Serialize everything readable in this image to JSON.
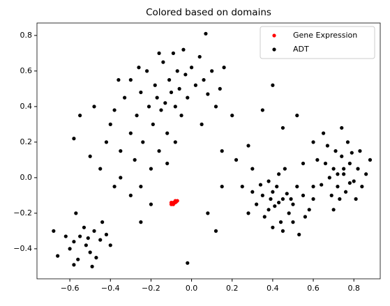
{
  "chart_data": {
    "type": "scatter",
    "title": "Colored based on domains",
    "xlim": [
      -0.762,
      0.93
    ],
    "ylim": [
      -0.569,
      0.87
    ],
    "xticks": [
      {
        "value": -0.6,
        "label": "−0.6"
      },
      {
        "value": -0.4,
        "label": "−0.4"
      },
      {
        "value": -0.2,
        "label": "−0.2"
      },
      {
        "value": 0,
        "label": "0.0"
      },
      0.2,
      0.4,
      0.6,
      0.8
    ],
    "yticks": [
      {
        "value": -0.4,
        "label": "−0.4"
      },
      {
        "value": -0.2,
        "label": "−0.2"
      },
      {
        "value": 0,
        "label": "0.0"
      },
      0.2,
      0.4,
      0.6,
      0.8
    ],
    "legend": "upper right",
    "series": [
      {
        "name": "ADT",
        "color": "#000000",
        "x": [
          -0.55,
          -0.52,
          -0.48,
          -0.58,
          -0.5,
          -0.45,
          -0.53,
          -0.6,
          -0.47,
          -0.42,
          -0.56,
          -0.62,
          -0.49,
          -0.4,
          -0.57,
          -0.68,
          -0.66,
          -0.58,
          -0.44,
          -0.51,
          -0.58,
          -0.5,
          -0.45,
          -0.42,
          -0.4,
          -0.38,
          -0.35,
          -0.33,
          -0.3,
          -0.3,
          -0.28,
          -0.27,
          -0.25,
          -0.24,
          -0.22,
          -0.21,
          -0.2,
          -0.19,
          -0.18,
          -0.17,
          -0.16,
          -0.15,
          -0.14,
          -0.13,
          -0.12,
          -0.11,
          -0.1,
          -0.09,
          -0.08,
          -0.07,
          -0.06,
          -0.05,
          -0.04,
          -0.03,
          -0.02,
          0.0,
          0.02,
          0.04,
          0.06,
          0.08,
          0.1,
          0.12,
          0.14,
          0.16,
          0.07,
          -0.25,
          -0.3,
          -0.2,
          -0.25,
          -0.35,
          -0.38,
          -0.48,
          -0.55,
          -0.36,
          -0.26,
          -0.16,
          -0.12,
          -0.08,
          0.05,
          0.2,
          0.15,
          0.22,
          0.3,
          0.15,
          0.12,
          -0.02,
          0.08,
          0.25,
          0.35,
          0.45,
          0.52,
          0.55,
          0.6,
          0.28,
          0.4,
          0.45,
          0.4,
          0.5,
          0.38,
          0.42,
          0.48,
          0.35,
          0.55,
          0.44,
          0.32,
          0.52,
          0.46,
          0.4,
          0.58,
          0.36,
          0.3,
          0.43,
          0.47,
          0.41,
          0.5,
          0.38,
          0.53,
          0.6,
          0.28,
          0.45,
          0.49,
          0.34,
          0.56,
          0.39,
          0.43,
          0.75,
          0.7,
          0.8,
          0.72,
          0.78,
          0.68,
          0.82,
          0.74,
          0.76,
          0.66,
          0.84,
          0.71,
          0.79,
          0.73,
          0.64,
          0.86,
          0.69,
          0.77,
          0.81,
          0.62,
          0.75,
          0.72,
          0.78,
          0.67,
          0.88,
          0.7,
          0.83,
          0.6,
          0.74,
          0.65
        ],
        "values": [
          -0.33,
          -0.38,
          -0.3,
          -0.36,
          -0.42,
          -0.35,
          -0.28,
          -0.4,
          -0.45,
          -0.32,
          -0.46,
          -0.33,
          -0.5,
          -0.38,
          -0.2,
          -0.3,
          -0.44,
          -0.49,
          -0.25,
          -0.34,
          0.22,
          0.12,
          0.05,
          0.2,
          0.3,
          0.38,
          0.15,
          0.45,
          0.25,
          0.55,
          0.1,
          0.35,
          0.48,
          0.2,
          0.6,
          0.4,
          0.05,
          0.3,
          0.52,
          0.45,
          0.15,
          0.38,
          0.65,
          0.42,
          0.25,
          0.55,
          0.48,
          0.7,
          0.4,
          0.6,
          0.5,
          0.35,
          0.72,
          0.58,
          0.45,
          0.62,
          0.52,
          0.68,
          0.55,
          0.47,
          0.6,
          0.4,
          0.5,
          0.62,
          0.81,
          -0.05,
          -0.1,
          -0.15,
          -0.25,
          0.0,
          -0.05,
          0.4,
          0.35,
          0.55,
          0.62,
          0.7,
          0.08,
          0.2,
          0.3,
          0.35,
          0.15,
          0.1,
          0.05,
          -0.05,
          -0.3,
          -0.48,
          -0.2,
          -0.05,
          0.38,
          0.28,
          0.35,
          0.08,
          0.2,
          0.18,
          0.52,
          -0.12,
          -0.08,
          -0.15,
          -0.18,
          -0.05,
          -0.2,
          -0.1,
          -0.1,
          -0.25,
          -0.15,
          -0.05,
          0.05,
          -0.28,
          -0.18,
          -0.22,
          -0.08,
          -0.14,
          -0.09,
          -0.16,
          -0.25,
          -0.02,
          -0.32,
          -0.05,
          -0.2,
          -0.3,
          -0.12,
          -0.04,
          -0.22,
          -0.12,
          0.02,
          0.02,
          0.05,
          -0.02,
          -0.05,
          0.08,
          0.0,
          0.05,
          0.12,
          -0.08,
          0.08,
          -0.05,
          0.15,
          0.14,
          -0.12,
          -0.04,
          0.02,
          -0.1,
          0.2,
          -0.12,
          0.1,
          0.05,
          0.02,
          -0.03,
          0.18,
          0.1,
          -0.18,
          0.15,
          -0.12,
          0.28,
          0.25
        ]
      },
      {
        "name": "Gene Expression",
        "color": "#ff0000",
        "x": [
          -0.1,
          -0.09,
          -0.08,
          -0.07,
          -0.1,
          -0.09,
          -0.08,
          -0.095,
          -0.075,
          -0.085
        ],
        "values": [
          -0.15,
          -0.14,
          -0.14,
          -0.13,
          -0.14,
          -0.15,
          -0.13,
          -0.145,
          -0.135,
          -0.14
        ]
      }
    ]
  }
}
